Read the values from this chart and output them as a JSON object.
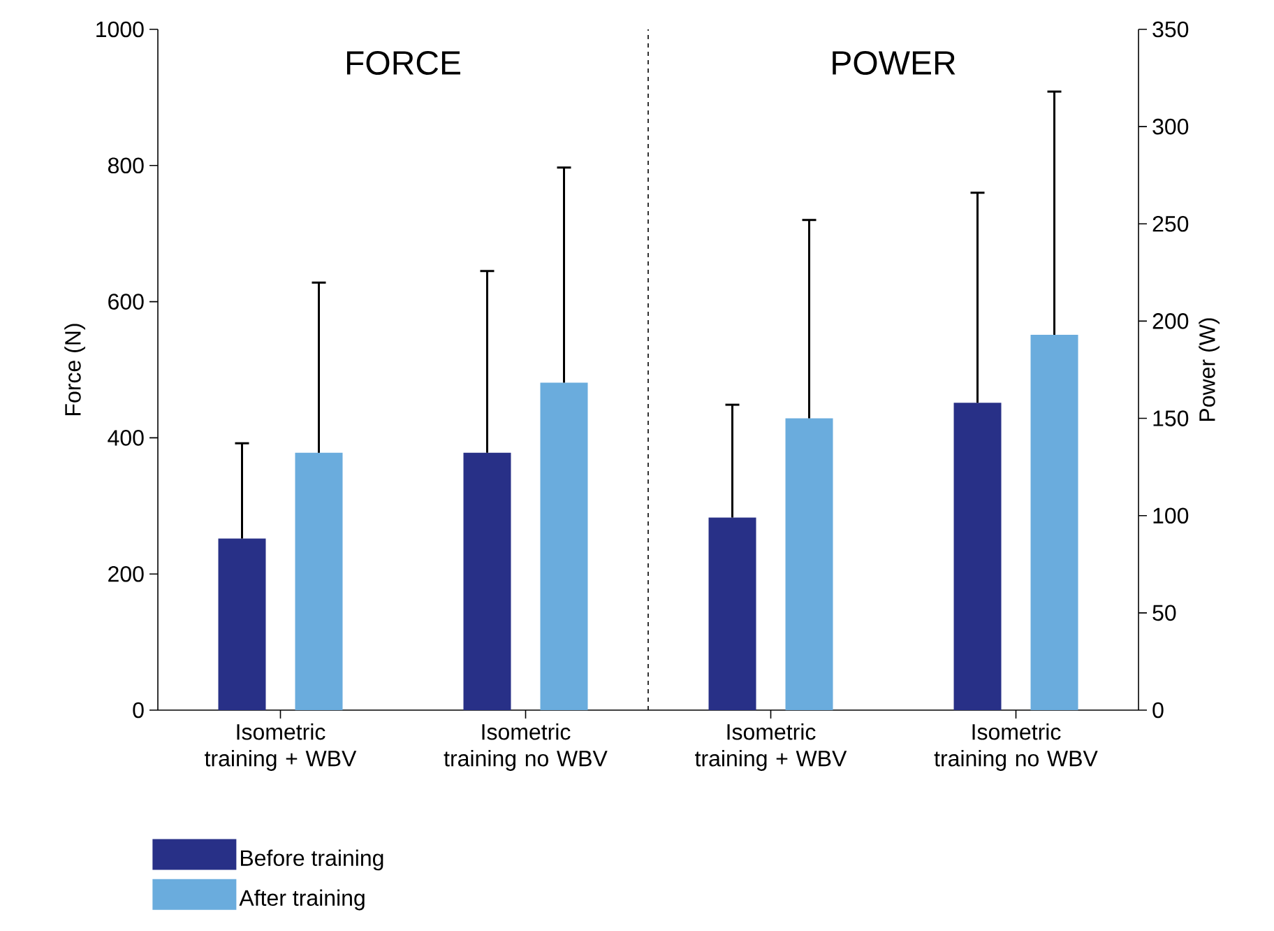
{
  "chart_data": {
    "type": "bar",
    "ylabel": "Force (N)",
    "y2label": "Power (W)",
    "categories": [
      "Isometric training + WBV",
      "Isometric training no WBV",
      "Isometric training + WBV",
      "Isometric training no WBV"
    ],
    "series": [
      {
        "name": "Before training",
        "color": "#283087",
        "values": [
          252,
          378,
          null,
          null
        ],
        "errors": [
          [
            252,
            392
          ],
          [
            378,
            645
          ],
          null,
          null
        ]
      },
      {
        "name": "After training",
        "color": "#6aacdd",
        "values": [
          378,
          481,
          null,
          null
        ],
        "errors": [
          [
            378,
            628
          ],
          [
            481,
            797
          ],
          null,
          null
        ]
      },
      {
        "color": "#283087",
        "axis": "y2",
        "values": [
          null,
          null,
          99,
          158
        ],
        "errors": [
          null,
          null,
          [
            99,
            157
          ],
          [
            158,
            266
          ]
        ]
      },
      {
        "color": "#6aacdd",
        "axis": "y2",
        "values": [
          null,
          null,
          150,
          193
        ],
        "errors": [
          null,
          null,
          [
            150,
            252
          ],
          [
            193,
            318
          ]
        ]
      }
    ],
    "ylim": [
      0,
      1000
    ],
    "yticks": [
      0,
      200,
      400,
      600,
      800,
      1000
    ],
    "y2lim": [
      0,
      350
    ],
    "y2ticks": [
      0,
      50,
      100,
      150,
      200,
      250,
      300,
      350
    ],
    "annotations": [
      "FORCE",
      "POWER"
    ],
    "legend": "bottom left"
  }
}
